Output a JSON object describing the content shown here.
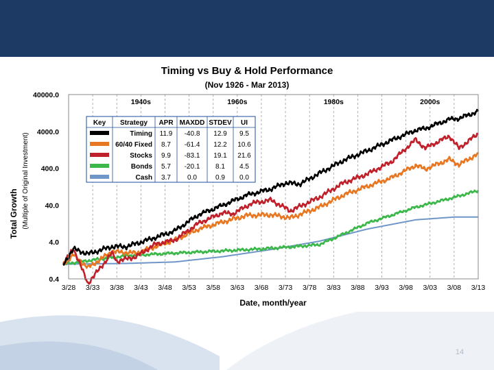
{
  "slide": {
    "number": "14",
    "band_color": "#1c3a63"
  },
  "chart_data": {
    "type": "line",
    "title": "Timing vs Buy & Hold Performance",
    "subtitle": "(Nov 1926 - Mar 2013)",
    "xlabel": "Date, month/year",
    "ylabel": "Total Growth",
    "ylabel_sub": "(Multiple of Original Investment)",
    "scale": "log",
    "ylim": [
      0.4,
      40000
    ],
    "yticks": [
      "40000.0",
      "4000.0",
      "400.0",
      "40.0",
      "4.0",
      "0.4"
    ],
    "ytick_values": [
      40000,
      4000,
      400,
      40,
      4,
      0.4
    ],
    "xlim": [
      1928,
      2013
    ],
    "xtick_labels": [
      "3/28",
      "3/33",
      "3/38",
      "3/43",
      "3/48",
      "3/53",
      "3/58",
      "3/63",
      "3/68",
      "3/73",
      "3/78",
      "3/83",
      "3/88",
      "3/93",
      "3/98",
      "3/03",
      "3/08",
      "3/13"
    ],
    "xtick_values": [
      1928,
      1933,
      1938,
      1943,
      1948,
      1953,
      1958,
      1963,
      1968,
      1973,
      1978,
      1983,
      1988,
      1993,
      1998,
      2003,
      2008,
      2013
    ],
    "decades": [
      {
        "label": "1940s",
        "from": 1938,
        "to": 1948
      },
      {
        "label": "1960s",
        "from": 1958,
        "to": 1968
      },
      {
        "label": "1980s",
        "from": 1978,
        "to": 1988
      },
      {
        "label": "2000s",
        "from": 1998,
        "to": 2008
      }
    ],
    "grid": "vertical dashed",
    "legend_table": {
      "headers": [
        "Key",
        "Strategy",
        "APR",
        "MAXDD",
        "STDEV",
        "UI"
      ],
      "rows": [
        {
          "strategy": "Timing",
          "apr": "11.9",
          "maxdd": "-40.8",
          "stdev": "12.9",
          "ui": "9.5",
          "color": "#000000"
        },
        {
          "strategy": "60/40 Fixed",
          "apr": "8.7",
          "maxdd": "-61.4",
          "stdev": "12.2",
          "ui": "10.6",
          "color": "#e87722"
        },
        {
          "strategy": "Stocks",
          "apr": "9.9",
          "maxdd": "-83.1",
          "stdev": "19.1",
          "ui": "21.6",
          "color": "#c0202a"
        },
        {
          "strategy": "Bonds",
          "apr": "5.7",
          "maxdd": "-20.1",
          "stdev": "8.1",
          "ui": "4.5",
          "color": "#3cb84a"
        },
        {
          "strategy": "Cash",
          "apr": "3.7",
          "maxdd": "0.0",
          "stdev": "0.9",
          "ui": "0.0",
          "color": "#6e96c8"
        }
      ]
    },
    "series": [
      {
        "key": "cash",
        "color": "#6e96c8",
        "x": [
          1926.9,
          1940,
          1950,
          1960,
          1970,
          1980,
          1990,
          2000,
          2008,
          2013
        ],
        "y": [
          1,
          1.05,
          1.15,
          1.6,
          2.5,
          4.2,
          9,
          16,
          19,
          19
        ]
      },
      {
        "key": "bonds",
        "color": "#3cb84a",
        "x": [
          1926.9,
          1933,
          1940,
          1950,
          1960,
          1968,
          1975,
          1980,
          1983,
          1990,
          2000,
          2008,
          2013
        ],
        "y": [
          1,
          1.3,
          1.7,
          2,
          2.3,
          2.6,
          3,
          3.4,
          5,
          13,
          35,
          65,
          100
        ]
      },
      {
        "key": "sixty_forty",
        "color": "#e87722",
        "x": [
          1926.9,
          1929,
          1932,
          1937,
          1942,
          1950,
          1955,
          1960,
          1965,
          1970,
          1974,
          1980,
          1985,
          1990,
          1995,
          2000,
          2002,
          2007,
          2009,
          2013
        ],
        "y": [
          1,
          1.8,
          0.8,
          2.2,
          2,
          4.5,
          9,
          14,
          21,
          22,
          18,
          35,
          75,
          130,
          220,
          480,
          380,
          700,
          500,
          1000
        ]
      },
      {
        "key": "stocks",
        "color": "#c0202a",
        "x": [
          1926.9,
          1929,
          1932,
          1937,
          1938,
          1942,
          1946,
          1950,
          1955,
          1960,
          1962,
          1966,
          1970,
          1974,
          1980,
          1985,
          1987,
          1990,
          1995,
          2000,
          2002,
          2007,
          2009,
          2013
        ],
        "y": [
          1,
          2.7,
          0.3,
          2,
          1.2,
          1.6,
          3.5,
          4.5,
          13,
          25,
          23,
          45,
          55,
          28,
          65,
          160,
          200,
          280,
          600,
          2400,
          1400,
          3000,
          1400,
          3500
        ]
      },
      {
        "key": "timing",
        "color": "#000000",
        "x": [
          1926.9,
          1929,
          1932,
          1937,
          1940,
          1945,
          1950,
          1955,
          1960,
          1965,
          1970,
          1973,
          1976,
          1980,
          1985,
          1990,
          1995,
          2000,
          2002,
          2007,
          2009,
          2013
        ],
        "y": [
          1,
          2.6,
          1.9,
          3,
          3,
          4.8,
          8,
          22,
          40,
          75,
          110,
          160,
          150,
          290,
          650,
          1200,
          2300,
          4300,
          4800,
          8500,
          9000,
          14000
        ]
      }
    ]
  }
}
